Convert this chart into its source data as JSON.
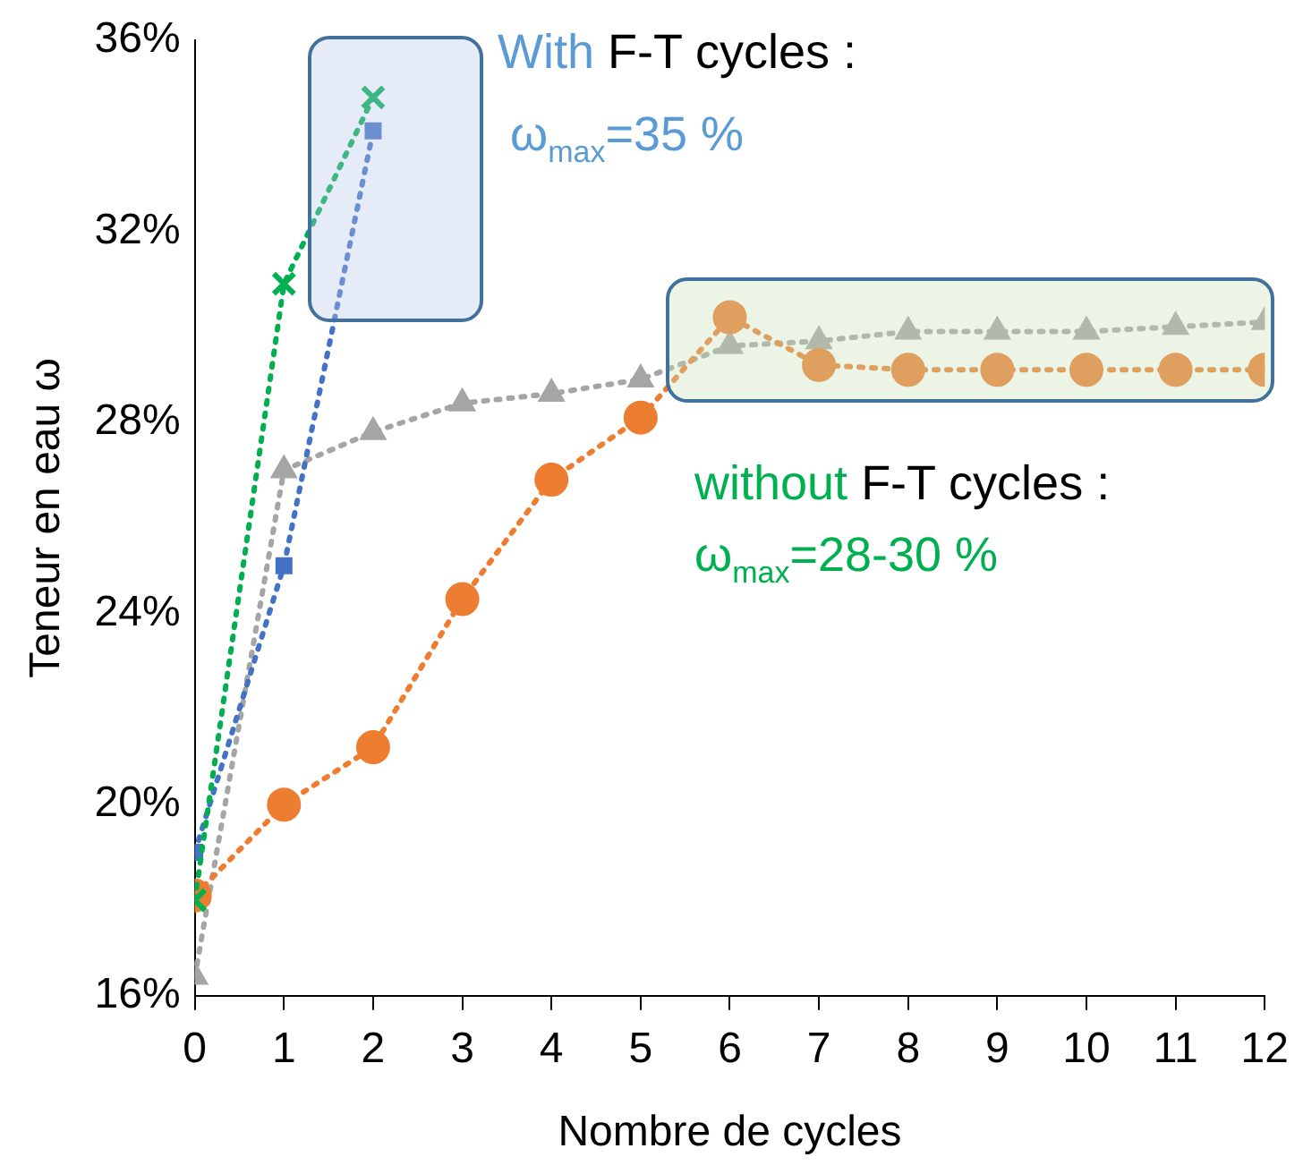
{
  "chart_data": {
    "type": "line",
    "xlabel": "Nombre de cycles",
    "ylabel": "Teneur en eau ω",
    "x": [
      0,
      1,
      2,
      3,
      4,
      5,
      6,
      7,
      8,
      9,
      10,
      11,
      12
    ],
    "xlim": [
      0,
      12
    ],
    "xticks": [
      0,
      1,
      2,
      3,
      4,
      5,
      6,
      7,
      8,
      9,
      10,
      11,
      12
    ],
    "ylim": [
      16,
      36
    ],
    "yticks": [
      {
        "value": 16,
        "label": "16%"
      },
      {
        "value": 20,
        "label": "20%"
      },
      {
        "value": 24,
        "label": "24%"
      },
      {
        "value": 28,
        "label": "28%"
      },
      {
        "value": 32,
        "label": "32%"
      },
      {
        "value": 36,
        "label": "36%"
      }
    ],
    "grid": false,
    "legend": false,
    "line_style": "dotted",
    "series": [
      {
        "color": "#a5a5a5",
        "marker": "triangle",
        "values": [
          16.4,
          27.0,
          27.8,
          28.4,
          28.6,
          28.9,
          29.6,
          29.7,
          29.9,
          29.9,
          29.9,
          30.0,
          30.1
        ]
      },
      {
        "color": "#ed7d31",
        "marker": "circle",
        "values": [
          18.1,
          20.0,
          21.2,
          24.3,
          26.8,
          28.1,
          30.2,
          29.2,
          29.1,
          29.1,
          29.1,
          29.1,
          29.1
        ]
      },
      {
        "color": "#4472c4",
        "marker": "square",
        "values": [
          19.0,
          25.0,
          34.1,
          null,
          null,
          null,
          null,
          null,
          null,
          null,
          null,
          null,
          null
        ]
      },
      {
        "color": "#00b050",
        "marker": "cross",
        "values": [
          18.0,
          30.9,
          34.8,
          null,
          null,
          null,
          null,
          null,
          null,
          null,
          null,
          null,
          null
        ]
      }
    ],
    "annotations": [
      "With F-T cycles :",
      "ω$_{max}$=35 %",
      "without F-T cycles :",
      "ω$_{max}$=28-30 %"
    ]
  }
}
